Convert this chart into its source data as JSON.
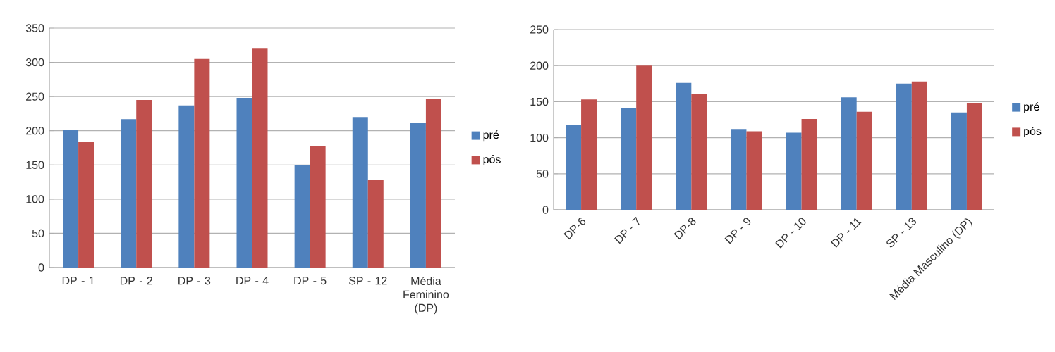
{
  "chart_data": [
    {
      "type": "bar",
      "categories": [
        "DP - 1",
        "DP - 2",
        "DP - 3",
        "DP - 4",
        "DP - 5",
        "SP - 12",
        "Média Feminino (DP)"
      ],
      "series": [
        {
          "name": "pré",
          "color": "#4f81bd",
          "values": [
            201,
            217,
            237,
            248,
            150,
            220,
            211
          ]
        },
        {
          "name": "pós",
          "color": "#c0504d",
          "values": [
            184,
            245,
            305,
            321,
            178,
            128,
            247
          ]
        }
      ],
      "ylim": [
        0,
        350
      ],
      "yticks": [
        0,
        50,
        100,
        150,
        200,
        250,
        300,
        350
      ],
      "grid": "y",
      "legend": "right"
    },
    {
      "type": "bar",
      "categories": [
        "DP-6",
        "DP - 7",
        "DP-8",
        "DP - 9",
        "DP - 10",
        "DP - 11",
        "SP - 13",
        "Média Masculino (DP)"
      ],
      "series": [
        {
          "name": "pré",
          "color": "#4f81bd",
          "values": [
            118,
            141,
            176,
            112,
            107,
            156,
            175,
            135
          ]
        },
        {
          "name": "pós",
          "color": "#c0504d",
          "values": [
            153,
            200,
            161,
            109,
            126,
            136,
            178,
            148
          ]
        }
      ],
      "ylim": [
        0,
        250
      ],
      "yticks": [
        0,
        50,
        100,
        150,
        200,
        250
      ],
      "grid": "y",
      "legend": "right"
    }
  ]
}
